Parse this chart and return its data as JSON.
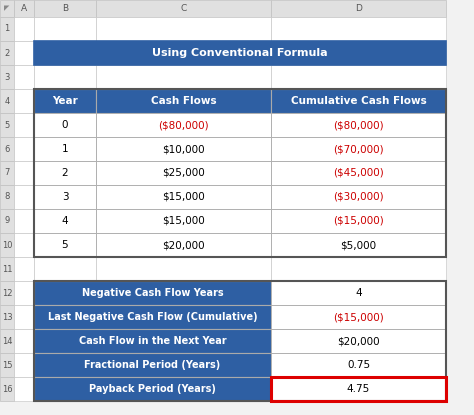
{
  "title": "Using Conventional Formula",
  "title_bg": "#2E5FA3",
  "title_color": "#FFFFFF",
  "header_bg": "#2E5FA3",
  "header_color": "#FFFFFF",
  "red_color": "#CC0000",
  "black_color": "#000000",
  "table1_headers": [
    "Year",
    "Cash Flows",
    "Cumulative Cash Flows"
  ],
  "table1_rows": [
    [
      "0",
      "($80,000)",
      "($80,000)"
    ],
    [
      "1",
      "$10,000",
      "($70,000)"
    ],
    [
      "2",
      "$25,000",
      "($45,000)"
    ],
    [
      "3",
      "$15,000",
      "($30,000)"
    ],
    [
      "4",
      "$15,000",
      "($15,000)"
    ],
    [
      "5",
      "$20,000",
      "$5,000"
    ]
  ],
  "table1_col_colors": [
    [
      "black",
      "red",
      "red"
    ],
    [
      "black",
      "black",
      "red"
    ],
    [
      "black",
      "black",
      "red"
    ],
    [
      "black",
      "black",
      "red"
    ],
    [
      "black",
      "black",
      "red"
    ],
    [
      "black",
      "black",
      "black"
    ]
  ],
  "table2_labels": [
    "Negative Cash Flow Years",
    "Last Negative Cash Flow (Cumulative)",
    "Cash Flow in the Next Year",
    "Fractional Period (Years)",
    "Payback Period (Years)"
  ],
  "table2_values": [
    "4",
    "($15,000)",
    "$20,000",
    "0.75",
    "4.75"
  ],
  "table2_val_colors": [
    "black",
    "red",
    "black",
    "black",
    "black"
  ],
  "excel_bg": "#F2F2F2",
  "col_header_bg": "#E0E0E0",
  "cell_bg": "#FFFFFF",
  "excel_border": "#C0C0C0",
  "table_border": "#555555"
}
